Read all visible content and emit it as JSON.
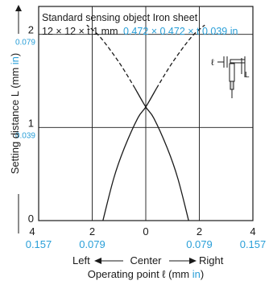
{
  "chart_data": {
    "type": "line",
    "annotation": {
      "line1": "Standard sensing object Iron sheet",
      "line2_mm": "12 × 12 × t 1 mm",
      "line2_in": "0.472 × 0.472 × t 0.039 in"
    },
    "ylabel": {
      "prefix": "Setting distance L (mm ",
      "unit": "in",
      "suffix": ")"
    },
    "xlabel": {
      "left": "Left",
      "center": "Center",
      "right": "Right",
      "prefix": "Operating point ℓ (mm ",
      "unit": "in",
      "suffix": ")"
    },
    "xlim": [
      -4,
      4
    ],
    "ylim": [
      0,
      2.3
    ],
    "x_ticks": [
      {
        "value": -4,
        "mm": "4",
        "in": "0.157"
      },
      {
        "value": -2,
        "mm": "2",
        "in": "0.079"
      },
      {
        "value": 0,
        "mm": "0",
        "in": ""
      },
      {
        "value": 2,
        "mm": "2",
        "in": "0.079"
      },
      {
        "value": 4,
        "mm": "4",
        "in": "0.157"
      }
    ],
    "y_ticks": [
      {
        "value": 0,
        "mm": "0",
        "in": ""
      },
      {
        "value": 1,
        "mm": "1",
        "in": "0.039"
      },
      {
        "value": 2,
        "mm": "2",
        "in": "0.079"
      }
    ],
    "grid": true,
    "series": [
      {
        "points": [
          [
            1.6,
            0
          ],
          [
            1.2,
            0.45
          ],
          [
            0.8,
            0.78
          ],
          [
            0.3,
            1.1
          ],
          [
            0,
            1.22
          ],
          [
            -0.4,
            1.42
          ],
          [
            -1.0,
            1.7
          ],
          [
            -1.7,
            1.97
          ],
          [
            -2.2,
            2.1
          ]
        ],
        "dashed_from_index": 5
      },
      {
        "points": [
          [
            -1.6,
            0
          ],
          [
            -1.2,
            0.45
          ],
          [
            -0.8,
            0.78
          ],
          [
            -0.3,
            1.1
          ],
          [
            0,
            1.22
          ],
          [
            0.4,
            1.42
          ],
          [
            1.0,
            1.7
          ],
          [
            1.7,
            1.97
          ],
          [
            2.2,
            2.1
          ]
        ],
        "dashed_from_index": 5
      }
    ]
  }
}
